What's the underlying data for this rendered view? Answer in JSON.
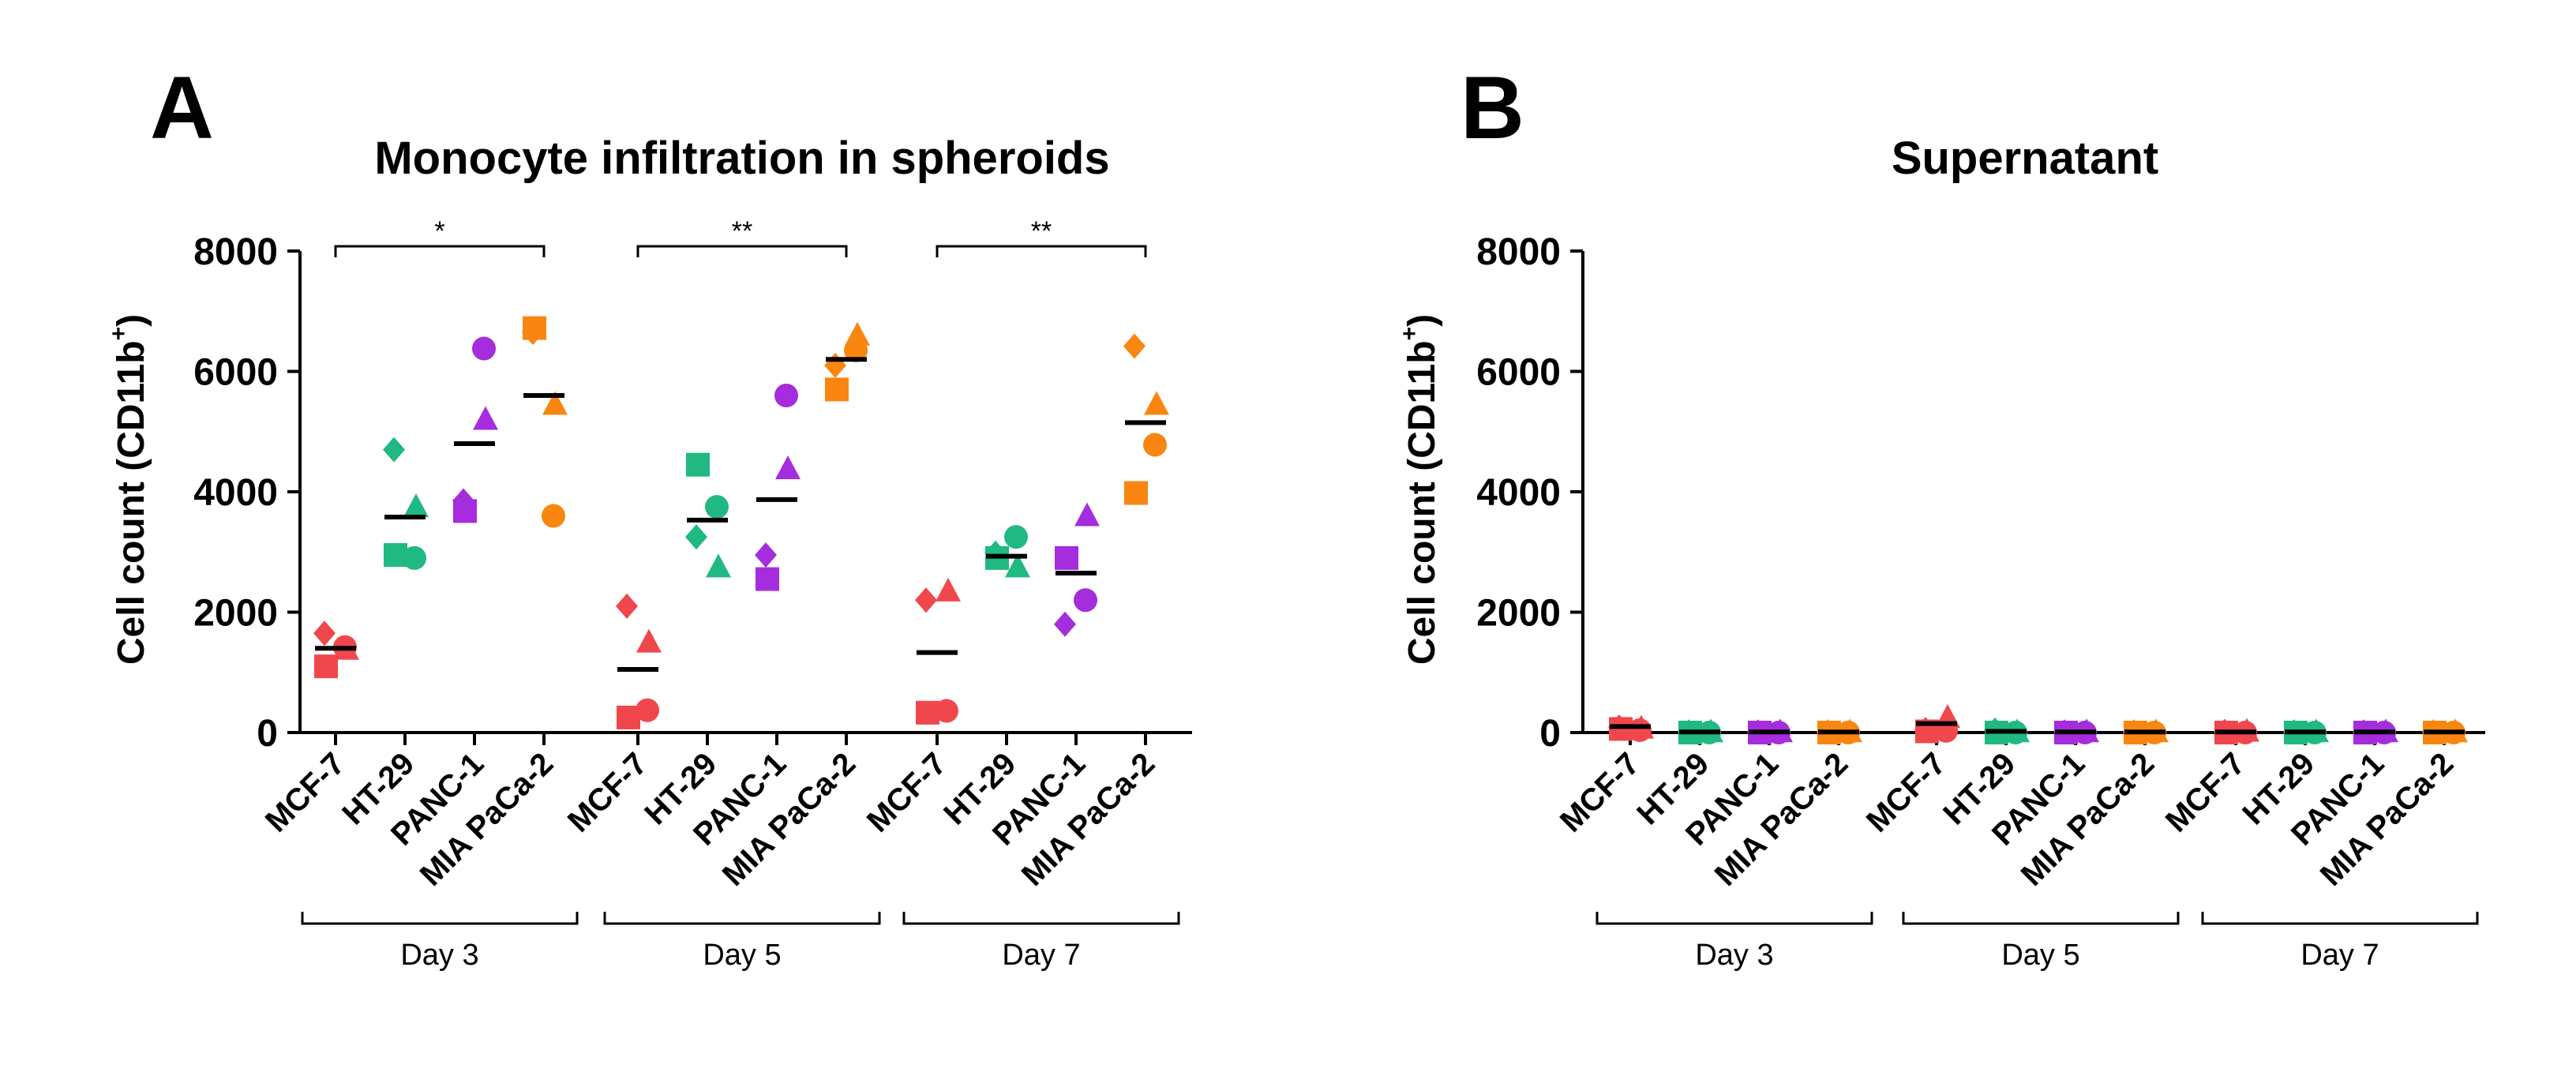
{
  "figure": {
    "panels": [
      {
        "letter": "A",
        "title": "Monocyte infiltration in spheroids",
        "ylabel_main": "Cell count (CD11b",
        "ylabel_sup": "+",
        "ylabel_end": ")"
      },
      {
        "letter": "B",
        "title": "Supernatant",
        "ylabel_main": "Cell count (CD11b",
        "ylabel_sup": "+",
        "ylabel_end": ")"
      }
    ]
  },
  "chart_data": [
    {
      "type": "scatter",
      "title": "Monocyte infiltration in spheroids",
      "ylabel": "Cell count (CD11b+)",
      "ylim": [
        0,
        8000
      ],
      "yticks": [
        0,
        2000,
        4000,
        6000,
        8000
      ],
      "cell_lines": [
        "MCF-7",
        "HT-29",
        "PANC-1",
        "MIA PaCa-2"
      ],
      "cell_line_colors": [
        "#f0474d",
        "#1fb981",
        "#a52ddd",
        "#f98610"
      ],
      "days": [
        {
          "label": "Day 3",
          "significance": "*",
          "groups": [
            {
              "mean": 1400,
              "points": [
                {
                  "shape": "diamond",
                  "v": 1650
                },
                {
                  "shape": "circle",
                  "v": 1420
                },
                {
                  "shape": "triangle",
                  "v": 1380
                },
                {
                  "shape": "square",
                  "v": 1100
                }
              ]
            },
            {
              "mean": 3580,
              "points": [
                {
                  "shape": "diamond",
                  "v": 4700
                },
                {
                  "shape": "triangle",
                  "v": 3750
                },
                {
                  "shape": "circle",
                  "v": 2900
                },
                {
                  "shape": "square",
                  "v": 2950
                }
              ]
            },
            {
              "mean": 4800,
              "points": [
                {
                  "shape": "circle",
                  "v": 6380
                },
                {
                  "shape": "triangle",
                  "v": 5200
                },
                {
                  "shape": "diamond",
                  "v": 3850
                },
                {
                  "shape": "square",
                  "v": 3680
                }
              ]
            },
            {
              "mean": 5600,
              "points": [
                {
                  "shape": "square",
                  "v": 6720
                },
                {
                  "shape": "diamond",
                  "v": 6650
                },
                {
                  "shape": "triangle",
                  "v": 5450
                },
                {
                  "shape": "circle",
                  "v": 3600
                }
              ]
            }
          ]
        },
        {
          "label": "Day 5",
          "significance": "**",
          "groups": [
            {
              "mean": 1050,
              "points": [
                {
                  "shape": "diamond",
                  "v": 2100
                },
                {
                  "shape": "triangle",
                  "v": 1500
                },
                {
                  "shape": "circle",
                  "v": 370
                },
                {
                  "shape": "square",
                  "v": 250
                }
              ]
            },
            {
              "mean": 3530,
              "points": [
                {
                  "shape": "square",
                  "v": 4450
                },
                {
                  "shape": "circle",
                  "v": 3750
                },
                {
                  "shape": "diamond",
                  "v": 3250
                },
                {
                  "shape": "triangle",
                  "v": 2750
                }
              ]
            },
            {
              "mean": 3870,
              "points": [
                {
                  "shape": "circle",
                  "v": 5600
                },
                {
                  "shape": "triangle",
                  "v": 4380
                },
                {
                  "shape": "diamond",
                  "v": 2950
                },
                {
                  "shape": "square",
                  "v": 2550
                }
              ]
            },
            {
              "mean": 6200,
              "points": [
                {
                  "shape": "triangle",
                  "v": 6600
                },
                {
                  "shape": "circle",
                  "v": 6350
                },
                {
                  "shape": "diamond",
                  "v": 6100
                },
                {
                  "shape": "square",
                  "v": 5700
                }
              ]
            }
          ]
        },
        {
          "label": "Day 7",
          "significance": "**",
          "groups": [
            {
              "mean": 1330,
              "points": [
                {
                  "shape": "triangle",
                  "v": 2350
                },
                {
                  "shape": "diamond",
                  "v": 2200
                },
                {
                  "shape": "circle",
                  "v": 360
                },
                {
                  "shape": "square",
                  "v": 330
                }
              ]
            },
            {
              "mean": 2930,
              "points": [
                {
                  "shape": "circle",
                  "v": 3250
                },
                {
                  "shape": "diamond",
                  "v": 2980
                },
                {
                  "shape": "triangle",
                  "v": 2750
                },
                {
                  "shape": "square",
                  "v": 2900
                }
              ]
            },
            {
              "mean": 2650,
              "points": [
                {
                  "shape": "triangle",
                  "v": 3600
                },
                {
                  "shape": "square",
                  "v": 2900
                },
                {
                  "shape": "circle",
                  "v": 2200
                },
                {
                  "shape": "diamond",
                  "v": 1800
                }
              ]
            },
            {
              "mean": 5150,
              "points": [
                {
                  "shape": "diamond",
                  "v": 6420
                },
                {
                  "shape": "triangle",
                  "v": 5450
                },
                {
                  "shape": "circle",
                  "v": 4780
                },
                {
                  "shape": "square",
                  "v": 3980
                }
              ]
            }
          ]
        }
      ]
    },
    {
      "type": "scatter",
      "title": "Supernatant",
      "ylabel": "Cell count (CD11b+)",
      "ylim": [
        0,
        8000
      ],
      "yticks": [
        0,
        2000,
        4000,
        6000,
        8000
      ],
      "cell_lines": [
        "MCF-7",
        "HT-29",
        "PANC-1",
        "MIA PaCa-2"
      ],
      "cell_line_colors": [
        "#f0474d",
        "#1fb981",
        "#a52ddd",
        "#f98610"
      ],
      "days": [
        {
          "label": "Day 3",
          "significance": "",
          "groups": [
            {
              "mean": 100,
              "points": [
                {
                  "shape": "diamond",
                  "v": 90
                },
                {
                  "shape": "triangle",
                  "v": 70
                },
                {
                  "shape": "square",
                  "v": 60
                },
                {
                  "shape": "circle",
                  "v": 40
                }
              ]
            },
            {
              "mean": 10,
              "points": [
                {
                  "shape": "diamond",
                  "v": 10
                },
                {
                  "shape": "triangle",
                  "v": 10
                },
                {
                  "shape": "circle",
                  "v": 0
                },
                {
                  "shape": "square",
                  "v": 0
                }
              ]
            },
            {
              "mean": 10,
              "points": [
                {
                  "shape": "diamond",
                  "v": 10
                },
                {
                  "shape": "triangle",
                  "v": 10
                },
                {
                  "shape": "circle",
                  "v": 0
                },
                {
                  "shape": "square",
                  "v": 0
                }
              ]
            },
            {
              "mean": 10,
              "points": [
                {
                  "shape": "diamond",
                  "v": 10
                },
                {
                  "shape": "triangle",
                  "v": 10
                },
                {
                  "shape": "circle",
                  "v": 0
                },
                {
                  "shape": "square",
                  "v": 0
                }
              ]
            }
          ]
        },
        {
          "label": "Day 5",
          "significance": "",
          "groups": [
            {
              "mean": 150,
              "points": [
                {
                  "shape": "triangle",
                  "v": 250
                },
                {
                  "shape": "diamond",
                  "v": 50
                },
                {
                  "shape": "circle",
                  "v": 30
                },
                {
                  "shape": "square",
                  "v": 20
                }
              ]
            },
            {
              "mean": 20,
              "points": [
                {
                  "shape": "diamond",
                  "v": 40
                },
                {
                  "shape": "triangle",
                  "v": 10
                },
                {
                  "shape": "circle",
                  "v": 0
                },
                {
                  "shape": "square",
                  "v": 0
                }
              ]
            },
            {
              "mean": 10,
              "points": [
                {
                  "shape": "diamond",
                  "v": 10
                },
                {
                  "shape": "triangle",
                  "v": 10
                },
                {
                  "shape": "circle",
                  "v": 0
                },
                {
                  "shape": "square",
                  "v": 0
                }
              ]
            },
            {
              "mean": 10,
              "points": [
                {
                  "shape": "diamond",
                  "v": 10
                },
                {
                  "shape": "triangle",
                  "v": 10
                },
                {
                  "shape": "circle",
                  "v": 0
                },
                {
                  "shape": "square",
                  "v": 0
                }
              ]
            }
          ]
        },
        {
          "label": "Day 7",
          "significance": "",
          "groups": [
            {
              "mean": 10,
              "points": [
                {
                  "shape": "diamond",
                  "v": 20
                },
                {
                  "shape": "triangle",
                  "v": 20
                },
                {
                  "shape": "circle",
                  "v": 0
                },
                {
                  "shape": "square",
                  "v": 0
                }
              ]
            },
            {
              "mean": 10,
              "points": [
                {
                  "shape": "diamond",
                  "v": 10
                },
                {
                  "shape": "triangle",
                  "v": 10
                },
                {
                  "shape": "circle",
                  "v": 0
                },
                {
                  "shape": "square",
                  "v": 0
                }
              ]
            },
            {
              "mean": 10,
              "points": [
                {
                  "shape": "diamond",
                  "v": 10
                },
                {
                  "shape": "triangle",
                  "v": 10
                },
                {
                  "shape": "circle",
                  "v": 0
                },
                {
                  "shape": "square",
                  "v": 0
                }
              ]
            },
            {
              "mean": 10,
              "points": [
                {
                  "shape": "diamond",
                  "v": 10
                },
                {
                  "shape": "triangle",
                  "v": 10
                },
                {
                  "shape": "circle",
                  "v": 0
                },
                {
                  "shape": "square",
                  "v": 0
                }
              ]
            }
          ]
        }
      ]
    }
  ]
}
